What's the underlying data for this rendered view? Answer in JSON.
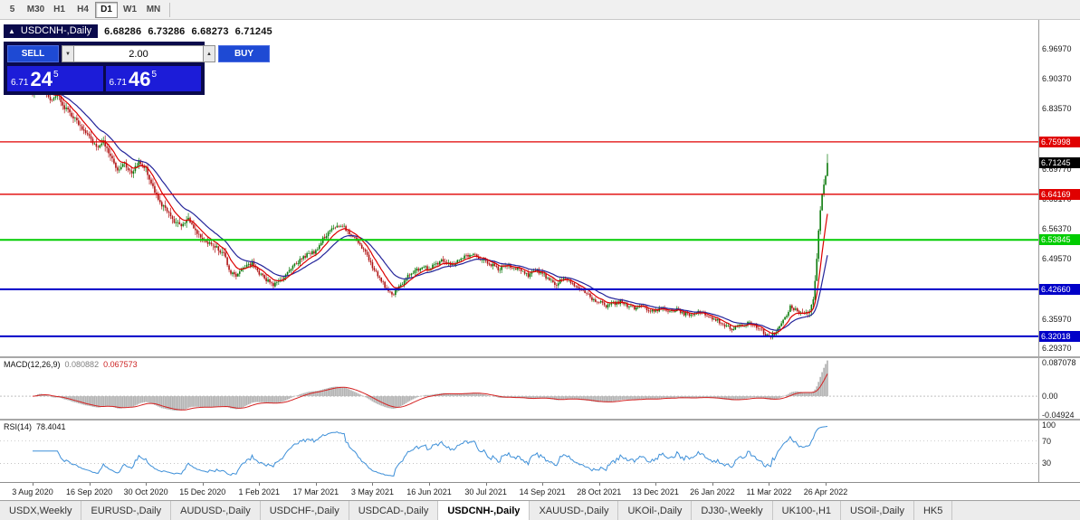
{
  "toolbar": {
    "timeframes": [
      {
        "label": "5",
        "active": false
      },
      {
        "label": "M30",
        "active": false
      },
      {
        "label": "H1",
        "active": false
      },
      {
        "label": "H4",
        "active": false
      },
      {
        "label": "D1",
        "active": true
      },
      {
        "label": "W1",
        "active": false
      },
      {
        "label": "MN",
        "active": false
      }
    ]
  },
  "chart_header": {
    "collapse_icon": "▲",
    "symbol_title": "USDCNH-,Daily",
    "open": "6.68286",
    "high": "6.73286",
    "low": "6.68273",
    "close": "6.71245"
  },
  "trade_panel": {
    "sell_label": "SELL",
    "buy_label": "BUY",
    "volume": "2.00",
    "volume_down_icon": "▼",
    "volume_up_icon": "▲",
    "sell_price_prefix": "6.71",
    "sell_price_big": "24",
    "sell_price_sup": "5",
    "buy_price_prefix": "6.71",
    "buy_price_big": "46",
    "buy_price_sup": "5"
  },
  "main_axis": {
    "labels": [
      {
        "value": 6.9697,
        "text": "6.96970"
      },
      {
        "value": 6.9037,
        "text": "6.90370"
      },
      {
        "value": 6.8357,
        "text": "6.83570"
      },
      {
        "value": 6.6977,
        "text": "6.69770"
      },
      {
        "value": 6.6317,
        "text": "6.63170"
      },
      {
        "value": 6.5637,
        "text": "6.56370"
      },
      {
        "value": 6.4957,
        "text": "6.49570"
      },
      {
        "value": 6.3597,
        "text": "6.35970"
      },
      {
        "value": 6.2937,
        "text": "6.29370"
      }
    ],
    "levels": [
      {
        "value": 6.75998,
        "text": "6.75998",
        "color": "#e00000",
        "width": 1.3
      },
      {
        "value": 6.64169,
        "text": "6.64169",
        "color": "#e00000",
        "width": 1.3
      },
      {
        "value": 6.53845,
        "text": "6.53845",
        "color": "#00cc00",
        "width": 2
      },
      {
        "value": 6.4266,
        "text": "6.42660",
        "color": "#0000c8",
        "width": 2
      },
      {
        "value": 6.32018,
        "text": "6.32018",
        "color": "#0000c8",
        "width": 2
      }
    ],
    "current": {
      "value": 6.71245,
      "text": "6.71245",
      "bg": "#000000"
    }
  },
  "macd_panel": {
    "name": "MACD(12,26,9)",
    "value": "0.080882",
    "signal_value": "0.067573",
    "axis": [
      {
        "value": 0.087078,
        "text": "0.087078"
      },
      {
        "value": 0.0,
        "text": "0.00"
      },
      {
        "value": -0.04924,
        "text": "-0.04924"
      }
    ],
    "range": [
      -0.0525,
      0.0885
    ],
    "histogram_color": "#b4b4b4",
    "signal_color": "#d42222"
  },
  "rsi_panel": {
    "name": "RSI(14)",
    "value": "78.4041",
    "axis": [
      {
        "value": 100,
        "text": "100"
      },
      {
        "value": 70,
        "text": "70"
      },
      {
        "value": 30,
        "text": "30"
      }
    ],
    "level_lines": [
      70,
      30
    ],
    "line_color": "#3d8fd8"
  },
  "date_axis": {
    "labels": [
      "3 Aug 2020",
      "16 Sep 2020",
      "30 Oct 2020",
      "15 Dec 2020",
      "1 Feb 2021",
      "17 Mar 2021",
      "3 May 2021",
      "16 Jun 2021",
      "30 Jul 2021",
      "14 Sep 2021",
      "28 Oct 2021",
      "13 Dec 2021",
      "26 Jan 2022",
      "11 Mar 2022",
      "26 Apr 2022"
    ]
  },
  "tabs": [
    {
      "label": "USDX,Weekly",
      "active": false
    },
    {
      "label": "EURUSD-,Daily",
      "active": false
    },
    {
      "label": "AUDUSD-,Daily",
      "active": false
    },
    {
      "label": "USDCHF-,Daily",
      "active": false
    },
    {
      "label": "USDCAD-,Daily",
      "active": false
    },
    {
      "label": "USDCNH-,Daily",
      "active": true
    },
    {
      "label": "XAUUSD-,Daily",
      "active": false
    },
    {
      "label": "UKOil-,Daily",
      "active": false
    },
    {
      "label": "DJ30-,Weekly",
      "active": false
    },
    {
      "label": "UK100-,H1",
      "active": false
    },
    {
      "label": "USOil-,Daily",
      "active": false
    },
    {
      "label": "HK5",
      "active": false
    }
  ],
  "chart_data": {
    "type": "candlestick",
    "symbol": "USDCNH",
    "timeframe": "Daily",
    "date_range": [
      "3 Aug 2020",
      "26 Apr 2022"
    ],
    "ylim": [
      6.275,
      7.036
    ],
    "bar_count": 450,
    "levels": [
      6.75998,
      6.64169,
      6.53845,
      6.4266,
      6.32018
    ],
    "last_bar": {
      "open": 6.68286,
      "high": 6.73286,
      "low": 6.68273,
      "close": 6.71245
    },
    "bid": 6.71245,
    "ask": 6.71465,
    "up_color": "#0b7a0b",
    "down_color": "#b01414",
    "ma_fast_color": "#dd0000",
    "ma_slow_color": "#24249a",
    "ma_fast_period": 9,
    "ma_slow_period": 21,
    "indicators": {
      "macd": {
        "fast": 12,
        "slow": 26,
        "signal": 9,
        "value": 0.080882,
        "signal_value": 0.067573,
        "axis_max": 0.087078,
        "axis_min": -0.04924
      },
      "rsi": {
        "period": 14,
        "value": 78.4041,
        "levels": [
          70,
          30
        ]
      }
    },
    "close_waypoints": [
      [
        0,
        6.872
      ],
      [
        3,
        6.9
      ],
      [
        6,
        6.878
      ],
      [
        10,
        6.856
      ],
      [
        14,
        6.868
      ],
      [
        18,
        6.838
      ],
      [
        24,
        6.812
      ],
      [
        28,
        6.792
      ],
      [
        32,
        6.772
      ],
      [
        36,
        6.748
      ],
      [
        40,
        6.76
      ],
      [
        44,
        6.726
      ],
      [
        48,
        6.696
      ],
      [
        52,
        6.712
      ],
      [
        56,
        6.688
      ],
      [
        60,
        6.716
      ],
      [
        64,
        6.7
      ],
      [
        68,
        6.656
      ],
      [
        72,
        6.622
      ],
      [
        76,
        6.602
      ],
      [
        80,
        6.58
      ],
      [
        84,
        6.572
      ],
      [
        88,
        6.584
      ],
      [
        92,
        6.558
      ],
      [
        96,
        6.542
      ],
      [
        100,
        6.528
      ],
      [
        104,
        6.52
      ],
      [
        108,
        6.505
      ],
      [
        112,
        6.464
      ],
      [
        116,
        6.458
      ],
      [
        120,
        6.478
      ],
      [
        124,
        6.486
      ],
      [
        128,
        6.462
      ],
      [
        132,
        6.448
      ],
      [
        136,
        6.434
      ],
      [
        140,
        6.446
      ],
      [
        144,
        6.468
      ],
      [
        148,
        6.482
      ],
      [
        152,
        6.496
      ],
      [
        156,
        6.506
      ],
      [
        160,
        6.514
      ],
      [
        164,
        6.54
      ],
      [
        168,
        6.558
      ],
      [
        172,
        6.572
      ],
      [
        176,
        6.566
      ],
      [
        180,
        6.548
      ],
      [
        184,
        6.534
      ],
      [
        188,
        6.51
      ],
      [
        192,
        6.478
      ],
      [
        196,
        6.452
      ],
      [
        200,
        6.428
      ],
      [
        204,
        6.416
      ],
      [
        208,
        6.434
      ],
      [
        212,
        6.456
      ],
      [
        216,
        6.468
      ],
      [
        220,
        6.478
      ],
      [
        224,
        6.472
      ],
      [
        228,
        6.484
      ],
      [
        232,
        6.492
      ],
      [
        236,
        6.48
      ],
      [
        240,
        6.49
      ],
      [
        244,
        6.5
      ],
      [
        248,
        6.506
      ],
      [
        252,
        6.498
      ],
      [
        256,
        6.492
      ],
      [
        260,
        6.48
      ],
      [
        264,
        6.472
      ],
      [
        268,
        6.482
      ],
      [
        272,
        6.476
      ],
      [
        276,
        6.468
      ],
      [
        280,
        6.458
      ],
      [
        284,
        6.47
      ],
      [
        288,
        6.462
      ],
      [
        292,
        6.448
      ],
      [
        296,
        6.438
      ],
      [
        300,
        6.452
      ],
      [
        304,
        6.442
      ],
      [
        308,
        6.432
      ],
      [
        312,
        6.42
      ],
      [
        316,
        6.406
      ],
      [
        320,
        6.398
      ],
      [
        324,
        6.388
      ],
      [
        328,
        6.394
      ],
      [
        332,
        6.398
      ],
      [
        336,
        6.39
      ],
      [
        340,
        6.384
      ],
      [
        344,
        6.39
      ],
      [
        348,
        6.38
      ],
      [
        352,
        6.378
      ],
      [
        356,
        6.386
      ],
      [
        360,
        6.374
      ],
      [
        364,
        6.38
      ],
      [
        368,
        6.372
      ],
      [
        372,
        6.366
      ],
      [
        376,
        6.374
      ],
      [
        380,
        6.368
      ],
      [
        384,
        6.362
      ],
      [
        388,
        6.352
      ],
      [
        392,
        6.344
      ],
      [
        396,
        6.336
      ],
      [
        400,
        6.344
      ],
      [
        404,
        6.352
      ],
      [
        408,
        6.342
      ],
      [
        412,
        6.332
      ],
      [
        416,
        6.32
      ],
      [
        420,
        6.328
      ],
      [
        424,
        6.354
      ],
      [
        428,
        6.386
      ],
      [
        432,
        6.378
      ],
      [
        436,
        6.368
      ],
      [
        439,
        6.378
      ],
      [
        441,
        6.404
      ],
      [
        442,
        6.446
      ],
      [
        443,
        6.496
      ],
      [
        444,
        6.56
      ],
      [
        445,
        6.606
      ],
      [
        446,
        6.64
      ],
      [
        447,
        6.664
      ],
      [
        448,
        6.683
      ],
      [
        449,
        6.712
      ]
    ]
  }
}
